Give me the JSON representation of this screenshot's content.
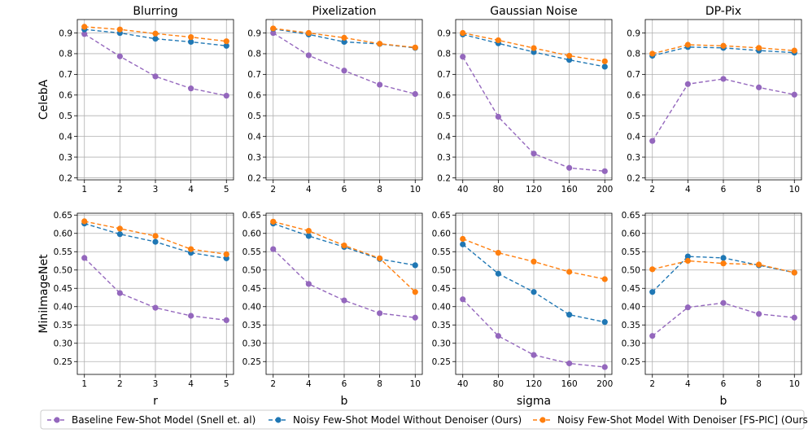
{
  "series_styles": [
    {
      "name": "Baseline Few-Shot Model (Snell et. al)",
      "color": "#9467bd"
    },
    {
      "name": "Noisy Few-Shot Model Without Denoiser (Ours)",
      "color": "#1f77b4"
    },
    {
      "name": "Noisy Few-Shot Model With Denoiser [FS-PIC] (Ours)",
      "color": "#ff7f0e"
    }
  ],
  "row_labels": [
    "CelebA",
    "MiniImageNet"
  ],
  "col_xlabels": [
    "r",
    "b",
    "sigma",
    "b"
  ],
  "chart_data": [
    {
      "type": "line",
      "title": "Blurring",
      "row": "CelebA",
      "xlabel": "",
      "ylabel": "CelebA",
      "x": [
        1,
        2,
        3,
        4,
        5
      ],
      "xlim": [
        0.8,
        5.2
      ],
      "ylim": [
        0.19,
        0.965
      ],
      "yticks": [
        0.2,
        0.3,
        0.4,
        0.5,
        0.6,
        0.7,
        0.8,
        0.9
      ],
      "ytick_labels": [
        "0.2",
        "0.3",
        "0.4",
        "0.5",
        "0.6",
        "0.7",
        "0.8",
        "0.9"
      ],
      "series": [
        {
          "name": "Baseline Few-Shot Model (Snell et. al)",
          "values": [
            0.895,
            0.787,
            0.69,
            0.632,
            0.597
          ]
        },
        {
          "name": "Noisy Few-Shot Model Without Denoiser (Ours)",
          "values": [
            0.917,
            0.9,
            0.872,
            0.857,
            0.838
          ]
        },
        {
          "name": "Noisy Few-Shot Model With Denoiser [FS-PIC] (Ours)",
          "values": [
            0.93,
            0.917,
            0.897,
            0.88,
            0.86
          ]
        }
      ]
    },
    {
      "type": "line",
      "title": "Pixelization",
      "row": "CelebA",
      "xlabel": "",
      "ylabel": "",
      "x": [
        2,
        4,
        6,
        8,
        10
      ],
      "xlim": [
        1.6,
        10.4
      ],
      "ylim": [
        0.19,
        0.965
      ],
      "yticks": [
        0.2,
        0.3,
        0.4,
        0.5,
        0.6,
        0.7,
        0.8,
        0.9
      ],
      "ytick_labels": [
        "0.2",
        "0.3",
        "0.4",
        "0.5",
        "0.6",
        "0.7",
        "0.8",
        "0.9"
      ],
      "series": [
        {
          "name": "Baseline Few-Shot Model (Snell et. al)",
          "values": [
            0.9,
            0.792,
            0.718,
            0.65,
            0.605
          ]
        },
        {
          "name": "Noisy Few-Shot Model Without Denoiser (Ours)",
          "values": [
            0.92,
            0.893,
            0.857,
            0.847,
            0.828
          ]
        },
        {
          "name": "Noisy Few-Shot Model With Denoiser [FS-PIC] (Ours)",
          "values": [
            0.922,
            0.9,
            0.877,
            0.848,
            0.83
          ]
        }
      ]
    },
    {
      "type": "line",
      "title": "Gaussian Noise",
      "row": "CelebA",
      "xlabel": "",
      "ylabel": "",
      "x": [
        40,
        80,
        120,
        160,
        200
      ],
      "xlim": [
        32,
        208
      ],
      "ylim": [
        0.19,
        0.965
      ],
      "yticks": [
        0.2,
        0.3,
        0.4,
        0.5,
        0.6,
        0.7,
        0.8,
        0.9
      ],
      "ytick_labels": [
        "0.2",
        "0.3",
        "0.4",
        "0.5",
        "0.6",
        "0.7",
        "0.8",
        "0.9"
      ],
      "series": [
        {
          "name": "Baseline Few-Shot Model (Snell et. al)",
          "values": [
            0.785,
            0.495,
            0.317,
            0.248,
            0.232
          ]
        },
        {
          "name": "Noisy Few-Shot Model Without Denoiser (Ours)",
          "values": [
            0.893,
            0.85,
            0.808,
            0.77,
            0.737
          ]
        },
        {
          "name": "Noisy Few-Shot Model With Denoiser [FS-PIC] (Ours)",
          "values": [
            0.9,
            0.865,
            0.827,
            0.79,
            0.763
          ]
        }
      ]
    },
    {
      "type": "line",
      "title": "DP-Pix",
      "row": "CelebA",
      "xlabel": "",
      "ylabel": "",
      "x": [
        2,
        4,
        6,
        8,
        10
      ],
      "xlim": [
        1.6,
        10.4
      ],
      "ylim": [
        0.19,
        0.965
      ],
      "yticks": [
        0.2,
        0.3,
        0.4,
        0.5,
        0.6,
        0.7,
        0.8,
        0.9
      ],
      "ytick_labels": [
        "0.2",
        "0.3",
        "0.4",
        "0.5",
        "0.6",
        "0.7",
        "0.8",
        "0.9"
      ],
      "series": [
        {
          "name": "Baseline Few-Shot Model (Snell et. al)",
          "values": [
            0.378,
            0.653,
            0.678,
            0.637,
            0.602
          ]
        },
        {
          "name": "Noisy Few-Shot Model Without Denoiser (Ours)",
          "values": [
            0.79,
            0.832,
            0.828,
            0.815,
            0.805
          ]
        },
        {
          "name": "Noisy Few-Shot Model With Denoiser [FS-PIC] (Ours)",
          "values": [
            0.8,
            0.843,
            0.838,
            0.828,
            0.815
          ]
        }
      ]
    },
    {
      "type": "line",
      "title": "",
      "row": "MiniImageNet",
      "xlabel": "r",
      "ylabel": "MiniImageNet",
      "x": [
        1,
        2,
        3,
        4,
        5
      ],
      "xlim": [
        0.8,
        5.2
      ],
      "ylim": [
        0.215,
        0.655
      ],
      "yticks": [
        0.25,
        0.3,
        0.35,
        0.4,
        0.45,
        0.5,
        0.55,
        0.6,
        0.65
      ],
      "ytick_labels": [
        "0.25",
        "0.30",
        "0.35",
        "0.40",
        "0.45",
        "0.50",
        "0.55",
        "0.60",
        "0.65"
      ],
      "series": [
        {
          "name": "Baseline Few-Shot Model (Snell et. al)",
          "values": [
            0.533,
            0.437,
            0.397,
            0.375,
            0.363
          ]
        },
        {
          "name": "Noisy Few-Shot Model Without Denoiser (Ours)",
          "values": [
            0.627,
            0.598,
            0.577,
            0.547,
            0.532
          ]
        },
        {
          "name": "Noisy Few-Shot Model With Denoiser [FS-PIC] (Ours)",
          "values": [
            0.633,
            0.613,
            0.593,
            0.557,
            0.543
          ]
        }
      ]
    },
    {
      "type": "line",
      "title": "",
      "row": "MiniImageNet",
      "xlabel": "b",
      "ylabel": "",
      "x": [
        2,
        4,
        6,
        8,
        10
      ],
      "xlim": [
        1.6,
        10.4
      ],
      "ylim": [
        0.215,
        0.655
      ],
      "yticks": [
        0.25,
        0.3,
        0.35,
        0.4,
        0.45,
        0.5,
        0.55,
        0.6,
        0.65
      ],
      "ytick_labels": [
        "0.25",
        "0.30",
        "0.35",
        "0.40",
        "0.45",
        "0.50",
        "0.55",
        "0.60",
        "0.65"
      ],
      "series": [
        {
          "name": "Baseline Few-Shot Model (Snell et. al)",
          "values": [
            0.557,
            0.462,
            0.417,
            0.382,
            0.37
          ]
        },
        {
          "name": "Noisy Few-Shot Model Without Denoiser (Ours)",
          "values": [
            0.627,
            0.593,
            0.563,
            0.53,
            0.513
          ]
        },
        {
          "name": "Noisy Few-Shot Model With Denoiser [FS-PIC] (Ours)",
          "values": [
            0.632,
            0.607,
            0.567,
            0.532,
            0.44
          ]
        }
      ]
    },
    {
      "type": "line",
      "title": "",
      "row": "MiniImageNet",
      "xlabel": "sigma",
      "ylabel": "",
      "x": [
        40,
        80,
        120,
        160,
        200
      ],
      "xlim": [
        32,
        208
      ],
      "ylim": [
        0.215,
        0.655
      ],
      "yticks": [
        0.25,
        0.3,
        0.35,
        0.4,
        0.45,
        0.5,
        0.55,
        0.6,
        0.65
      ],
      "ytick_labels": [
        "0.25",
        "0.30",
        "0.35",
        "0.40",
        "0.45",
        "0.50",
        "0.55",
        "0.60",
        "0.65"
      ],
      "series": [
        {
          "name": "Baseline Few-Shot Model (Snell et. al)",
          "values": [
            0.42,
            0.32,
            0.268,
            0.245,
            0.235
          ]
        },
        {
          "name": "Noisy Few-Shot Model Without Denoiser (Ours)",
          "values": [
            0.57,
            0.49,
            0.44,
            0.378,
            0.358
          ]
        },
        {
          "name": "Noisy Few-Shot Model With Denoiser [FS-PIC] (Ours)",
          "values": [
            0.585,
            0.547,
            0.523,
            0.495,
            0.475
          ]
        }
      ]
    },
    {
      "type": "line",
      "title": "",
      "row": "MiniImageNet",
      "xlabel": "b",
      "ylabel": "",
      "x": [
        2,
        4,
        6,
        8,
        10
      ],
      "xlim": [
        1.6,
        10.4
      ],
      "ylim": [
        0.215,
        0.655
      ],
      "yticks": [
        0.25,
        0.3,
        0.35,
        0.4,
        0.45,
        0.5,
        0.55,
        0.6,
        0.65
      ],
      "ytick_labels": [
        "0.25",
        "0.30",
        "0.35",
        "0.40",
        "0.45",
        "0.50",
        "0.55",
        "0.60",
        "0.65"
      ],
      "series": [
        {
          "name": "Baseline Few-Shot Model (Snell et. al)",
          "values": [
            0.32,
            0.398,
            0.41,
            0.38,
            0.37
          ]
        },
        {
          "name": "Noisy Few-Shot Model Without Denoiser (Ours)",
          "values": [
            0.44,
            0.537,
            0.533,
            0.513,
            0.493
          ]
        },
        {
          "name": "Noisy Few-Shot Model With Denoiser [FS-PIC] (Ours)",
          "values": [
            0.502,
            0.525,
            0.518,
            0.515,
            0.493
          ]
        }
      ]
    }
  ],
  "legend": {
    "placement": "bottom-center",
    "entries": [
      "Baseline Few-Shot Model (Snell et. al)",
      "Noisy Few-Shot Model Without Denoiser (Ours)",
      "Noisy Few-Shot Model With Denoiser [FS-PIC] (Ours)"
    ]
  }
}
